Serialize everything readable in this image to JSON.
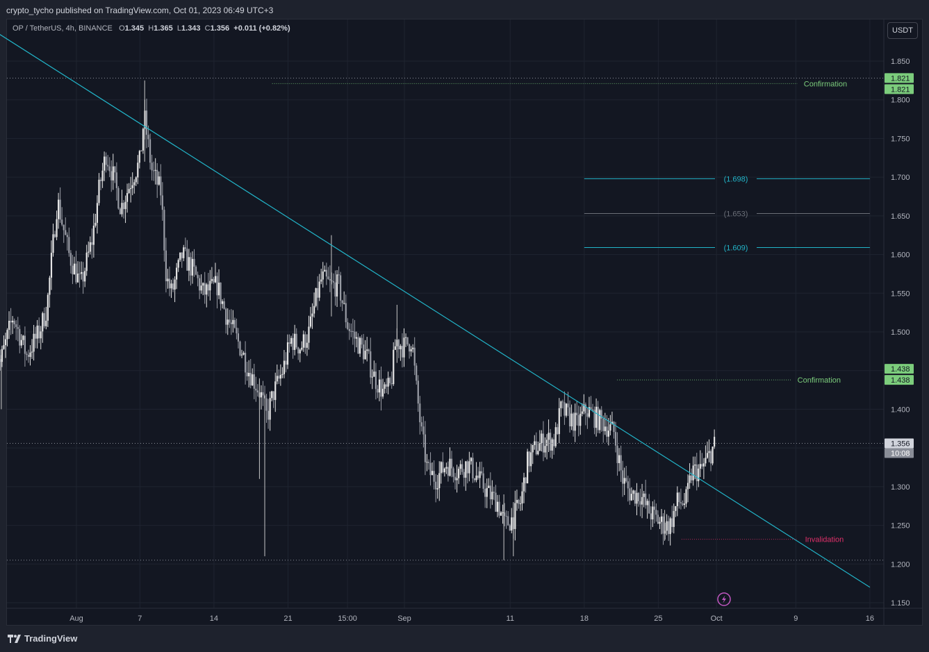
{
  "header": {
    "publisher": "crypto_tycho published on TradingView.com, Oct 01, 2023 06:49 UTC+3"
  },
  "legend": {
    "symbol": "OP / TetherUS, 4h, BINANCE",
    "o_label": "O",
    "o": "1.345",
    "h_label": "H",
    "h": "1.365",
    "l_label": "L",
    "l": "1.343",
    "c_label": "C",
    "c": "1.356",
    "change": "+0.011 (+0.82%)"
  },
  "currency_button": "USDT",
  "footer": {
    "brand": "TradingView"
  },
  "colors": {
    "background": "#131722",
    "trendline": "#22b5c9",
    "confirmation": "#7ccd7c",
    "invalidation": "#e0306a",
    "grid": "#1f2430",
    "candle": "#c8c8c8",
    "last_price_badge": "#d1d4dc"
  },
  "chart_data": {
    "type": "candlestick",
    "title": "OP / TetherUS, 4h, BINANCE",
    "ylim": [
      1.15,
      1.87
    ],
    "y_ticks": [
      "1.850",
      "1.800",
      "1.750",
      "1.700",
      "1.650",
      "1.600",
      "1.550",
      "1.500",
      "1.450",
      "1.400",
      "1.350",
      "1.300",
      "1.250",
      "1.200",
      "1.150"
    ],
    "x_range_days": [
      -6.75,
      50.8
    ],
    "x_ticks": [
      {
        "label": "Aug",
        "day": 1
      },
      {
        "label": "7",
        "day": 7
      },
      {
        "label": "14",
        "day": 14
      },
      {
        "label": "21",
        "day": 21
      },
      {
        "label": "15:00",
        "day": 26.62
      },
      {
        "label": "Sep",
        "day": 32
      },
      {
        "label": "11",
        "day": 42
      },
      {
        "label": "18",
        "day": 49
      },
      {
        "label": "25",
        "day": 56
      },
      {
        "label": "Oct",
        "day": 61.5
      },
      {
        "label": "9",
        "day": 69
      },
      {
        "label": "16",
        "day": 76
      }
    ],
    "candle_path": [
      {
        "day": -6.7,
        "p": 1.49
      },
      {
        "day": -6.2,
        "p": 1.46
      },
      {
        "day": -5.0,
        "p": 1.52
      },
      {
        "day": -3.7,
        "p": 1.47
      },
      {
        "day": -2.5,
        "p": 1.5
      },
      {
        "day": -1.8,
        "p": 1.53
      },
      {
        "day": -0.8,
        "p": 1.67
      },
      {
        "day": 0.3,
        "p": 1.6
      },
      {
        "day": 1.4,
        "p": 1.56
      },
      {
        "day": 2.5,
        "p": 1.62
      },
      {
        "day": 3.2,
        "p": 1.69
      },
      {
        "day": 3.8,
        "p": 1.73
      },
      {
        "day": 4.5,
        "p": 1.7
      },
      {
        "day": 5.2,
        "p": 1.66
      },
      {
        "day": 6.3,
        "p": 1.7
      },
      {
        "day": 7.0,
        "p": 1.72
      },
      {
        "day": 7.4,
        "p": 1.78
      },
      {
        "day": 8.1,
        "p": 1.71
      },
      {
        "day": 9.0,
        "p": 1.68
      },
      {
        "day": 9.5,
        "p": 1.57
      },
      {
        "day": 10.0,
        "p": 1.55
      },
      {
        "day": 11.0,
        "p": 1.6
      },
      {
        "day": 12.0,
        "p": 1.58
      },
      {
        "day": 13.0,
        "p": 1.55
      },
      {
        "day": 14.3,
        "p": 1.56
      },
      {
        "day": 15.2,
        "p": 1.52
      },
      {
        "day": 16.5,
        "p": 1.48
      },
      {
        "day": 17.3,
        "p": 1.45
      },
      {
        "day": 18.4,
        "p": 1.42
      },
      {
        "day": 19.0,
        "p": 1.39
      },
      {
        "day": 19.6,
        "p": 1.42
      },
      {
        "day": 20.5,
        "p": 1.45
      },
      {
        "day": 21.3,
        "p": 1.49
      },
      {
        "day": 22.2,
        "p": 1.48
      },
      {
        "day": 23.0,
        "p": 1.5
      },
      {
        "day": 23.6,
        "p": 1.54
      },
      {
        "day": 24.2,
        "p": 1.57
      },
      {
        "day": 25.0,
        "p": 1.56
      },
      {
        "day": 25.8,
        "p": 1.56
      },
      {
        "day": 26.6,
        "p": 1.51
      },
      {
        "day": 27.4,
        "p": 1.49
      },
      {
        "day": 28.4,
        "p": 1.47
      },
      {
        "day": 29.2,
        "p": 1.44
      },
      {
        "day": 30.1,
        "p": 1.42
      },
      {
        "day": 30.7,
        "p": 1.43
      },
      {
        "day": 31.2,
        "p": 1.49
      },
      {
        "day": 31.9,
        "p": 1.48
      },
      {
        "day": 32.7,
        "p": 1.49
      },
      {
        "day": 33.1,
        "p": 1.43
      },
      {
        "day": 33.6,
        "p": 1.37
      },
      {
        "day": 34.2,
        "p": 1.32
      },
      {
        "day": 35.0,
        "p": 1.31
      },
      {
        "day": 36.0,
        "p": 1.33
      },
      {
        "day": 37.0,
        "p": 1.32
      },
      {
        "day": 38.0,
        "p": 1.33
      },
      {
        "day": 39.0,
        "p": 1.31
      },
      {
        "day": 40.0,
        "p": 1.29
      },
      {
        "day": 40.8,
        "p": 1.28
      },
      {
        "day": 41.5,
        "p": 1.25
      },
      {
        "day": 42.3,
        "p": 1.26
      },
      {
        "day": 43.0,
        "p": 1.28
      },
      {
        "day": 43.6,
        "p": 1.33
      },
      {
        "day": 44.4,
        "p": 1.35
      },
      {
        "day": 45.3,
        "p": 1.36
      },
      {
        "day": 46.2,
        "p": 1.36
      },
      {
        "day": 46.8,
        "p": 1.4
      },
      {
        "day": 47.6,
        "p": 1.39
      },
      {
        "day": 48.3,
        "p": 1.38
      },
      {
        "day": 49.2,
        "p": 1.4
      },
      {
        "day": 50.0,
        "p": 1.39
      },
      {
        "day": 51.0,
        "p": 1.38
      },
      {
        "day": 51.8,
        "p": 1.37
      },
      {
        "day": 52.6,
        "p": 1.31
      },
      {
        "day": 53.4,
        "p": 1.29
      },
      {
        "day": 54.3,
        "p": 1.29
      },
      {
        "day": 55.0,
        "p": 1.27
      },
      {
        "day": 55.7,
        "p": 1.26
      },
      {
        "day": 56.5,
        "p": 1.25
      },
      {
        "day": 57.1,
        "p": 1.25
      },
      {
        "day": 57.8,
        "p": 1.28
      },
      {
        "day": 58.6,
        "p": 1.28
      },
      {
        "day": 59.2,
        "p": 1.32
      },
      {
        "day": 60.0,
        "p": 1.32
      },
      {
        "day": 60.8,
        "p": 1.34
      },
      {
        "day": 61.4,
        "p": 1.356
      }
    ],
    "spike_wicks": [
      {
        "day": 7.45,
        "high": 1.825,
        "low": 1.72
      },
      {
        "day": -6.1,
        "high": 1.47,
        "low": 1.4
      },
      {
        "day": 18.8,
        "high": 1.42,
        "low": 1.21
      },
      {
        "day": 18.3,
        "high": 1.44,
        "low": 1.31
      },
      {
        "day": 25.1,
        "high": 1.625,
        "low": 1.52
      },
      {
        "day": 31.3,
        "high": 1.535,
        "low": 1.46
      },
      {
        "day": 41.4,
        "high": 1.29,
        "low": 1.205
      },
      {
        "day": 42.3,
        "high": 1.28,
        "low": 1.21
      },
      {
        "day": 56.6,
        "high": 1.27,
        "low": 1.23
      }
    ],
    "trendline": {
      "start": {
        "day": -6.3,
        "price": 1.885
      },
      "end": {
        "day": 76.0,
        "price": 1.17
      }
    },
    "price_lines": [
      {
        "price": 1.821,
        "style": "dotted",
        "label": "Confirmation",
        "label_color": "confirmation",
        "line_color": "confirmation",
        "from_day": 19.5,
        "to_day": 71.8
      },
      {
        "price": 1.438,
        "style": "dotted",
        "label": "Confirmation",
        "label_color": "confirmation",
        "line_color": "confirmation",
        "from_day": 52.1,
        "to_day": 71.2
      },
      {
        "price": 1.232,
        "style": "dotted",
        "label": "Invalidation",
        "label_color": "invalidation",
        "line_color": "invalidation",
        "from_day": 58.2,
        "to_day": 71.7
      }
    ],
    "levels": [
      {
        "price": 1.698,
        "label": "(1.698)",
        "color": "#22b5c9",
        "from_day": 49.0,
        "to_day": 76.0
      },
      {
        "price": 1.653,
        "label": "(1.653)",
        "color": "#6b6f78",
        "from_day": 49.0,
        "to_day": 76.0
      },
      {
        "price": 1.609,
        "label": "(1.609)",
        "color": "#22b5c9",
        "from_day": 49.0,
        "to_day": 76.0
      }
    ],
    "dotted_refs": [
      1.828,
      1.356,
      1.205
    ],
    "price_badges": [
      {
        "price": 1.821,
        "text": "1.821",
        "bg": "#7ccd7c",
        "fg": "#131722",
        "offset": -8
      },
      {
        "price": 1.821,
        "text": "1.821",
        "bg": "#7ccd7c",
        "fg": "#131722",
        "offset": 8
      },
      {
        "price": 1.438,
        "text": "1.438",
        "bg": "#7ccd7c",
        "fg": "#131722",
        "offset": -16
      },
      {
        "price": 1.438,
        "text": "1.438",
        "bg": "#7ccd7c",
        "fg": "#131722",
        "offset": 0
      },
      {
        "price": 1.356,
        "text": "1.356",
        "bg": "#d1d4dc",
        "fg": "#131722",
        "offset": 0
      },
      {
        "price": 1.356,
        "text": "10:08",
        "bg": "#8a8e98",
        "fg": "#ffffff",
        "offset": 14
      }
    ],
    "last_price": 1.356,
    "countdown": "10:08"
  }
}
